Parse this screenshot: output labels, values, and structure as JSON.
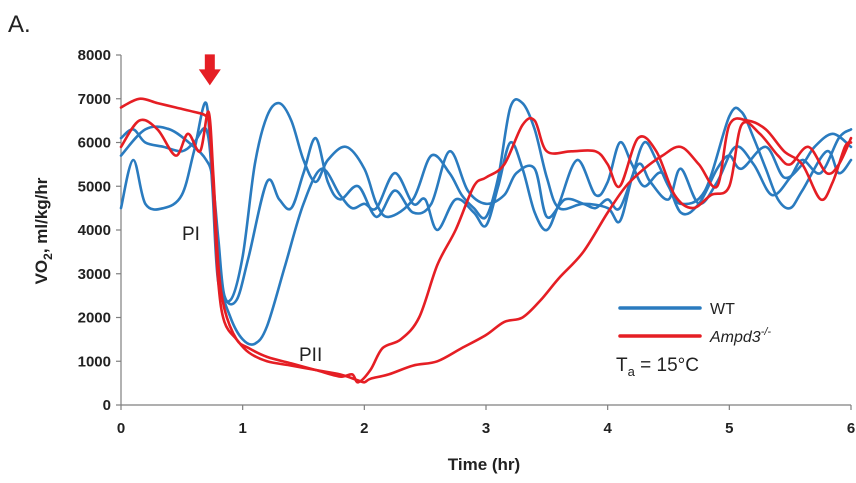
{
  "panel_label": "A.",
  "colors": {
    "wt": "#2a7bbf",
    "ampd3": "#e51e24",
    "axis": "#7f7f7f",
    "text": "#222222"
  },
  "annotations": {
    "phase1": "PI",
    "phase2": "PII",
    "temp_prefix": "T",
    "temp_sub": "a",
    "temp_value": " = 15°C"
  },
  "ylabel_parts": {
    "a": "VO",
    "sub": "2",
    "b": ", ml/kg/hr"
  },
  "chart_data": {
    "type": "line",
    "xlabel": "Time (hr)",
    "ylabel": "VO2, ml/kg/hr",
    "xlim": [
      0,
      6
    ],
    "ylim": [
      0,
      8000
    ],
    "xticks": [
      0,
      1,
      2,
      3,
      4,
      5,
      6
    ],
    "yticks": [
      0,
      1000,
      2000,
      3000,
      4000,
      5000,
      6000,
      7000,
      8000
    ],
    "grid": false,
    "legend_position": "bottom-right",
    "legend": [
      {
        "key": "wt",
        "label": "WT",
        "sup": ""
      },
      {
        "key": "ampd3",
        "label": "Ampd3",
        "sup": "-/-"
      }
    ],
    "marker": {
      "type": "arrow",
      "x": 0.73,
      "y": 7900
    },
    "series": [
      {
        "group": "wt",
        "points": [
          [
            0,
            4500
          ],
          [
            0.1,
            5600
          ],
          [
            0.2,
            4600
          ],
          [
            0.35,
            4500
          ],
          [
            0.5,
            4800
          ],
          [
            0.6,
            5800
          ],
          [
            0.7,
            6900
          ],
          [
            0.75,
            5000
          ],
          [
            0.8,
            2800
          ],
          [
            0.9,
            2400
          ],
          [
            1.0,
            3400
          ],
          [
            1.1,
            5500
          ],
          [
            1.2,
            6600
          ],
          [
            1.3,
            6900
          ],
          [
            1.4,
            6500
          ],
          [
            1.5,
            5600
          ],
          [
            1.6,
            5100
          ],
          [
            1.7,
            5600
          ],
          [
            1.85,
            5900
          ],
          [
            2.0,
            5400
          ],
          [
            2.1,
            4600
          ],
          [
            2.2,
            4300
          ],
          [
            2.4,
            4700
          ],
          [
            2.55,
            5700
          ],
          [
            2.7,
            5300
          ],
          [
            2.8,
            4800
          ],
          [
            2.9,
            4500
          ],
          [
            3.0,
            4300
          ],
          [
            3.1,
            5200
          ],
          [
            3.2,
            6800
          ],
          [
            3.3,
            6900
          ],
          [
            3.4,
            6300
          ],
          [
            3.5,
            5200
          ],
          [
            3.6,
            4500
          ],
          [
            3.8,
            4600
          ],
          [
            4.0,
            4500
          ],
          [
            4.1,
            4200
          ],
          [
            4.2,
            5200
          ],
          [
            4.3,
            6000
          ],
          [
            4.4,
            5600
          ],
          [
            4.5,
            5000
          ],
          [
            4.6,
            4600
          ],
          [
            4.8,
            4900
          ],
          [
            5.0,
            6600
          ],
          [
            5.1,
            6700
          ],
          [
            5.2,
            6100
          ],
          [
            5.3,
            5400
          ],
          [
            5.4,
            4700
          ],
          [
            5.5,
            4500
          ],
          [
            5.6,
            4900
          ],
          [
            5.8,
            5800
          ],
          [
            5.9,
            5300
          ],
          [
            6.0,
            5600
          ]
        ]
      },
      {
        "group": "wt",
        "points": [
          [
            0,
            6100
          ],
          [
            0.1,
            6300
          ],
          [
            0.2,
            6000
          ],
          [
            0.35,
            5900
          ],
          [
            0.5,
            5800
          ],
          [
            0.6,
            6000
          ],
          [
            0.7,
            6300
          ],
          [
            0.75,
            5200
          ],
          [
            0.8,
            3000
          ],
          [
            0.9,
            2000
          ],
          [
            1.0,
            1500
          ],
          [
            1.1,
            1400
          ],
          [
            1.2,
            1800
          ],
          [
            1.35,
            3200
          ],
          [
            1.5,
            4600
          ],
          [
            1.65,
            5400
          ],
          [
            1.8,
            4800
          ],
          [
            1.9,
            4500
          ],
          [
            2.0,
            4600
          ],
          [
            2.1,
            4500
          ],
          [
            2.25,
            5300
          ],
          [
            2.4,
            4600
          ],
          [
            2.5,
            4700
          ],
          [
            2.6,
            4000
          ],
          [
            2.75,
            4700
          ],
          [
            2.9,
            4400
          ],
          [
            3.0,
            4100
          ],
          [
            3.1,
            5000
          ],
          [
            3.2,
            6000
          ],
          [
            3.3,
            5400
          ],
          [
            3.4,
            4400
          ],
          [
            3.5,
            4000
          ],
          [
            3.6,
            4600
          ],
          [
            3.75,
            5600
          ],
          [
            3.9,
            4800
          ],
          [
            4.0,
            5100
          ],
          [
            4.1,
            6000
          ],
          [
            4.2,
            5500
          ],
          [
            4.3,
            5000
          ],
          [
            4.45,
            5300
          ],
          [
            4.6,
            4400
          ],
          [
            4.75,
            4600
          ],
          [
            4.9,
            5400
          ],
          [
            5.0,
            5700
          ],
          [
            5.1,
            5400
          ],
          [
            5.3,
            5900
          ],
          [
            5.45,
            5200
          ],
          [
            5.6,
            5500
          ],
          [
            5.7,
            5900
          ],
          [
            5.85,
            6200
          ],
          [
            6.0,
            5900
          ]
        ]
      },
      {
        "group": "wt",
        "points": [
          [
            0,
            5700
          ],
          [
            0.2,
            6300
          ],
          [
            0.4,
            6300
          ],
          [
            0.6,
            5900
          ],
          [
            0.7,
            5600
          ],
          [
            0.75,
            5200
          ],
          [
            0.8,
            3800
          ],
          [
            0.85,
            2500
          ],
          [
            0.95,
            2400
          ],
          [
            1.05,
            3400
          ],
          [
            1.2,
            5100
          ],
          [
            1.3,
            4700
          ],
          [
            1.4,
            4500
          ],
          [
            1.5,
            5300
          ],
          [
            1.6,
            6100
          ],
          [
            1.7,
            5100
          ],
          [
            1.8,
            4700
          ],
          [
            1.95,
            5000
          ],
          [
            2.1,
            4300
          ],
          [
            2.25,
            4900
          ],
          [
            2.4,
            4400
          ],
          [
            2.55,
            4600
          ],
          [
            2.7,
            5800
          ],
          [
            2.85,
            4900
          ],
          [
            3.0,
            4600
          ],
          [
            3.15,
            4800
          ],
          [
            3.25,
            5300
          ],
          [
            3.4,
            5400
          ],
          [
            3.5,
            4300
          ],
          [
            3.65,
            4700
          ],
          [
            3.8,
            4600
          ],
          [
            3.9,
            4500
          ],
          [
            4.0,
            4700
          ],
          [
            4.1,
            4500
          ],
          [
            4.25,
            5500
          ],
          [
            4.35,
            5100
          ],
          [
            4.5,
            4700
          ],
          [
            4.6,
            5400
          ],
          [
            4.75,
            4600
          ],
          [
            4.9,
            5100
          ],
          [
            5.05,
            5900
          ],
          [
            5.2,
            5500
          ],
          [
            5.35,
            4800
          ],
          [
            5.5,
            5200
          ],
          [
            5.6,
            5600
          ],
          [
            5.75,
            5300
          ],
          [
            5.9,
            6100
          ],
          [
            6.0,
            6300
          ]
        ]
      },
      {
        "group": "ampd3",
        "points": [
          [
            0,
            6800
          ],
          [
            0.15,
            7000
          ],
          [
            0.3,
            6900
          ],
          [
            0.45,
            6800
          ],
          [
            0.6,
            6700
          ],
          [
            0.7,
            6600
          ],
          [
            0.73,
            6300
          ],
          [
            0.76,
            4800
          ],
          [
            0.8,
            2800
          ],
          [
            0.85,
            1900
          ],
          [
            0.95,
            1500
          ],
          [
            1.05,
            1200
          ],
          [
            1.2,
            1000
          ],
          [
            1.4,
            900
          ],
          [
            1.6,
            800
          ],
          [
            1.8,
            700
          ],
          [
            1.95,
            560
          ],
          [
            2.0,
            520
          ],
          [
            2.05,
            600
          ],
          [
            2.2,
            700
          ],
          [
            2.4,
            900
          ],
          [
            2.6,
            1000
          ],
          [
            2.8,
            1300
          ],
          [
            3.0,
            1600
          ],
          [
            3.15,
            1900
          ],
          [
            3.3,
            2000
          ],
          [
            3.45,
            2400
          ],
          [
            3.6,
            2900
          ],
          [
            3.8,
            3500
          ],
          [
            4.0,
            4400
          ],
          [
            4.15,
            5000
          ],
          [
            4.3,
            5400
          ],
          [
            4.45,
            5700
          ],
          [
            4.6,
            5900
          ],
          [
            4.75,
            5500
          ],
          [
            4.9,
            5000
          ],
          [
            5.0,
            6400
          ],
          [
            5.15,
            6500
          ],
          [
            5.3,
            6300
          ],
          [
            5.45,
            5800
          ],
          [
            5.6,
            5500
          ],
          [
            5.75,
            4700
          ],
          [
            5.85,
            5100
          ],
          [
            5.95,
            5900
          ],
          [
            6.0,
            6000
          ]
        ]
      },
      {
        "group": "ampd3",
        "points": [
          [
            0,
            5900
          ],
          [
            0.15,
            6500
          ],
          [
            0.3,
            6300
          ],
          [
            0.45,
            5700
          ],
          [
            0.55,
            6200
          ],
          [
            0.65,
            5800
          ],
          [
            0.72,
            6700
          ],
          [
            0.76,
            5200
          ],
          [
            0.8,
            3200
          ],
          [
            0.85,
            2200
          ],
          [
            0.95,
            1500
          ],
          [
            1.05,
            1300
          ],
          [
            1.2,
            1100
          ],
          [
            1.4,
            950
          ],
          [
            1.6,
            800
          ],
          [
            1.8,
            650
          ],
          [
            1.9,
            700
          ],
          [
            1.95,
            520
          ],
          [
            2.05,
            800
          ],
          [
            2.15,
            1300
          ],
          [
            2.3,
            1500
          ],
          [
            2.45,
            2000
          ],
          [
            2.6,
            3200
          ],
          [
            2.75,
            4000
          ],
          [
            2.9,
            5000
          ],
          [
            3.0,
            5200
          ],
          [
            3.15,
            5500
          ],
          [
            3.3,
            6400
          ],
          [
            3.4,
            6500
          ],
          [
            3.5,
            5800
          ],
          [
            3.7,
            5800
          ],
          [
            3.9,
            5800
          ],
          [
            4.0,
            5500
          ],
          [
            4.1,
            5000
          ],
          [
            4.25,
            6100
          ],
          [
            4.4,
            5800
          ],
          [
            4.55,
            4800
          ],
          [
            4.7,
            4500
          ],
          [
            4.85,
            4800
          ],
          [
            5.0,
            5000
          ],
          [
            5.1,
            6400
          ],
          [
            5.25,
            6200
          ],
          [
            5.4,
            5700
          ],
          [
            5.5,
            5500
          ],
          [
            5.65,
            5900
          ],
          [
            5.8,
            5300
          ],
          [
            5.9,
            5500
          ],
          [
            6.0,
            6100
          ]
        ]
      }
    ]
  }
}
